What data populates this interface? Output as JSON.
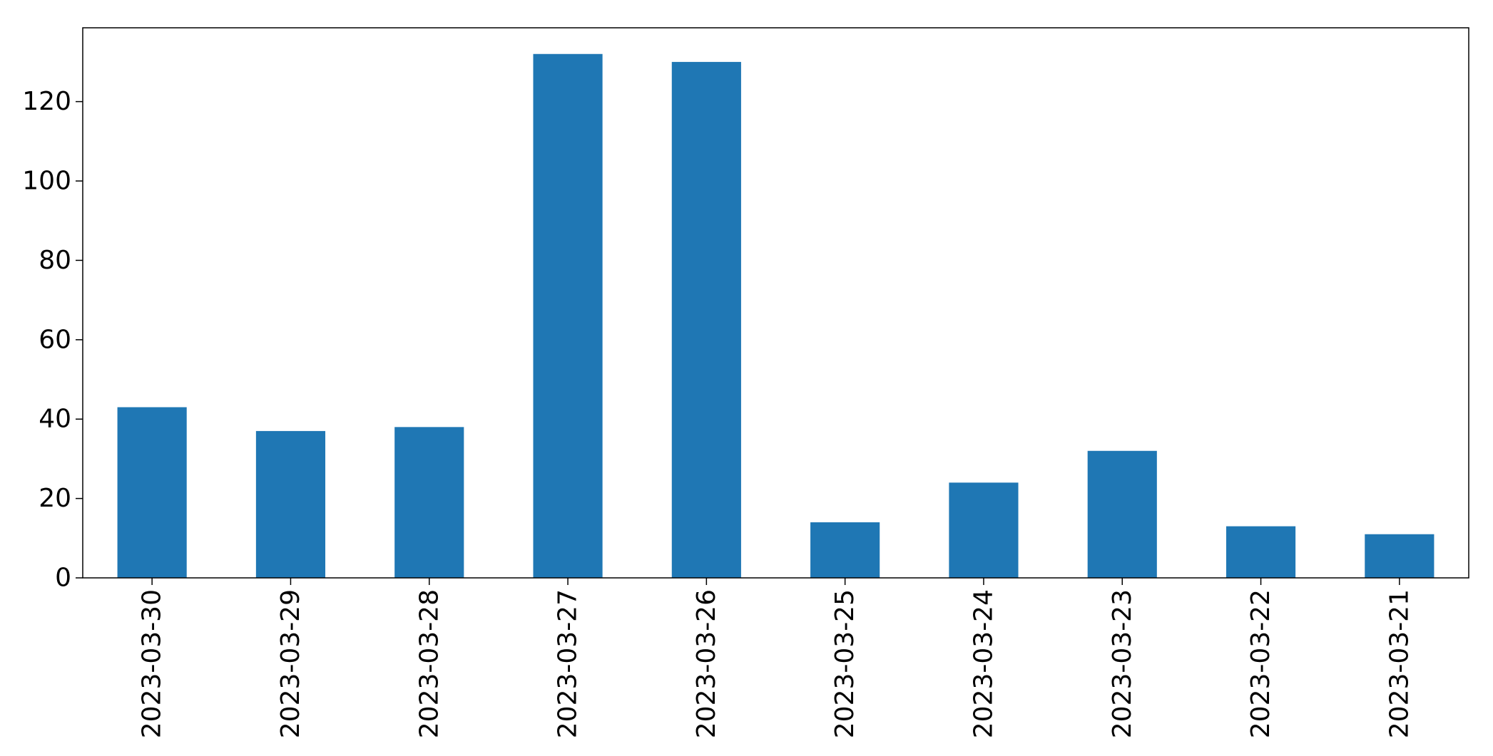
{
  "chart_data": {
    "type": "bar",
    "categories": [
      "2023-03-30",
      "2023-03-29",
      "2023-03-28",
      "2023-03-27",
      "2023-03-26",
      "2023-03-25",
      "2023-03-24",
      "2023-03-23",
      "2023-03-22",
      "2023-03-21"
    ],
    "values": [
      43,
      37,
      38,
      132,
      130,
      14,
      24,
      32,
      13,
      11
    ],
    "yticks": [
      0,
      20,
      40,
      60,
      80,
      100,
      120
    ],
    "ylim": [
      0,
      138.6
    ],
    "title": "",
    "xlabel": "",
    "ylabel": "",
    "grid": false,
    "legend": "none",
    "bar_color": "#1f77b4"
  }
}
